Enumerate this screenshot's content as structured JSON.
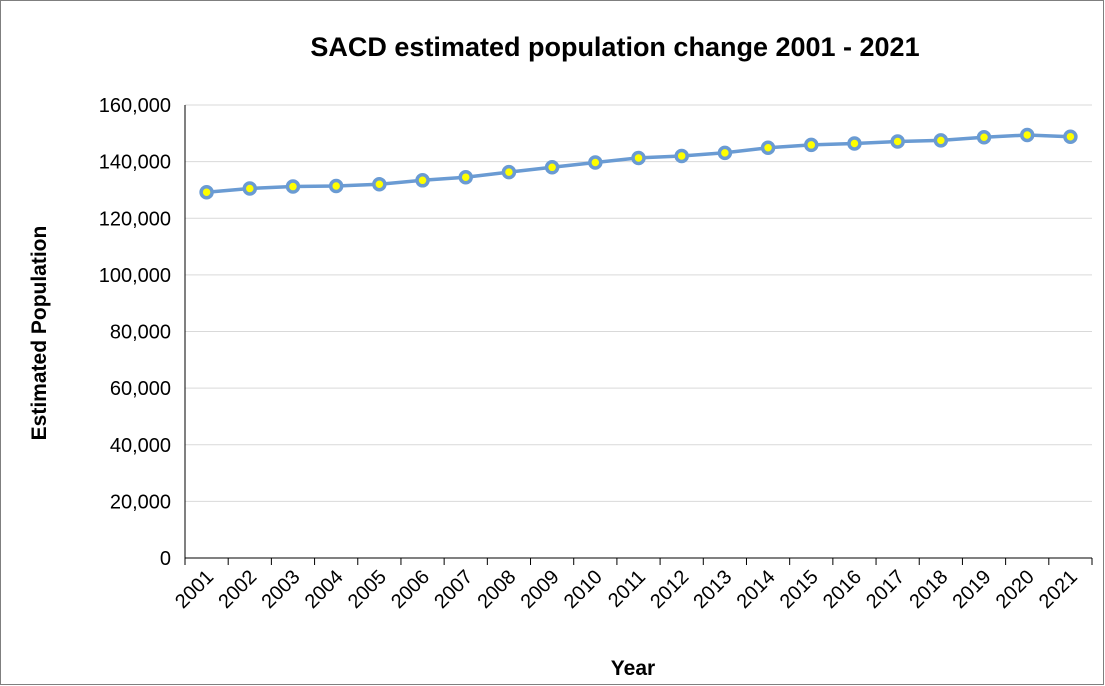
{
  "chart_data": {
    "type": "line",
    "title": "SACD estimated population change 2001 - 2021",
    "xlabel": "Year",
    "ylabel": "Estimated Population",
    "ylim": [
      0,
      160000
    ],
    "y_ticks": [
      "0",
      "20,000",
      "40,000",
      "60,000",
      "80,000",
      "100,000",
      "120,000",
      "140,000",
      "160,000"
    ],
    "y_tick_values": [
      0,
      20000,
      40000,
      60000,
      80000,
      100000,
      120000,
      140000,
      160000
    ],
    "grid": true,
    "legend": "none",
    "categories": [
      "2001",
      "2002",
      "2003",
      "2004",
      "2005",
      "2006",
      "2007",
      "2008",
      "2009",
      "2010",
      "2011",
      "2012",
      "2013",
      "2014",
      "2015",
      "2016",
      "2017",
      "2018",
      "2019",
      "2020",
      "2021"
    ],
    "series": [
      {
        "values": [
          129200,
          130500,
          131200,
          131400,
          132000,
          133400,
          134500,
          136300,
          138000,
          139700,
          141300,
          142000,
          143100,
          144900,
          145900,
          146400,
          147100,
          147500,
          148600,
          149400,
          148800
        ]
      }
    ],
    "colors": {
      "line": "#6a9bd3",
      "marker_fill": "#ffff00",
      "marker_edge": "#6a9bd3"
    }
  }
}
